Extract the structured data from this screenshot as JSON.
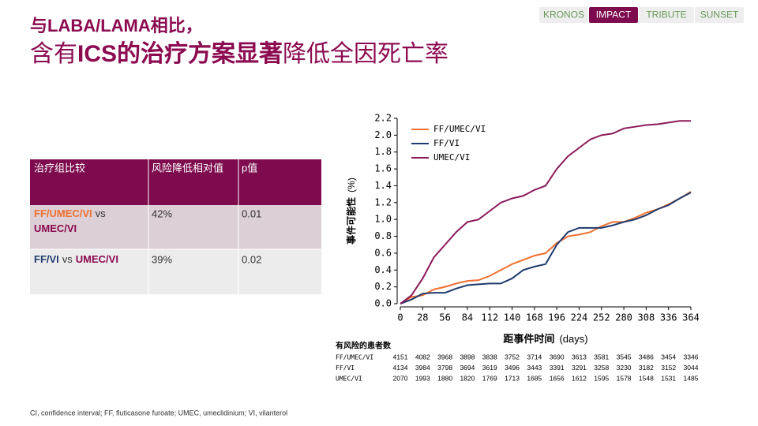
{
  "nav": {
    "tabs": [
      "KRONOS",
      "IMPACT",
      "TRIBUTE",
      "SUNSET"
    ],
    "active": 1
  },
  "header": {
    "line1": "与LABA/LAMA相比，",
    "line2": {
      "pre": "含有",
      "bold": "ICS的治疗方案显著",
      "post": "降低全因死亡率"
    }
  },
  "table": {
    "headers": [
      "治疗组比较",
      "风险降低相对值",
      "p值"
    ],
    "rows": [
      {
        "comparison": {
          "a": "FF/UMEC/VI",
          "vs": "vs",
          "b": "UMEC/VI"
        },
        "reduction": "42%",
        "p": "0.01"
      },
      {
        "comparison": {
          "a": "FF/VI",
          "vs": "vs",
          "b": "UMEC/VI"
        },
        "reduction": "39%",
        "p": "0.02"
      }
    ]
  },
  "chart_data": {
    "type": "line",
    "step_like": true,
    "x_label": "距事件时间",
    "x_unit": "(days)",
    "y_label": "事件可能性",
    "y_unit": "(%)",
    "x": [
      0,
      14,
      28,
      42,
      56,
      70,
      84,
      98,
      112,
      126,
      140,
      154,
      168,
      182,
      196,
      210,
      224,
      238,
      252,
      266,
      280,
      294,
      308,
      322,
      336,
      350,
      364
    ],
    "series": [
      {
        "name": "FF/UMEC/VI",
        "color": "#f07030",
        "values": [
          0,
          0.08,
          0.1,
          0.17,
          0.2,
          0.24,
          0.27,
          0.28,
          0.33,
          0.4,
          0.47,
          0.52,
          0.57,
          0.6,
          0.72,
          0.8,
          0.82,
          0.85,
          0.92,
          0.97,
          0.97,
          1.02,
          1.08,
          1.12,
          1.18,
          1.25,
          1.33
        ]
      },
      {
        "name": "FF/VI",
        "color": "#1f3a6e",
        "values": [
          0,
          0.05,
          0.12,
          0.13,
          0.13,
          0.18,
          0.22,
          0.23,
          0.24,
          0.24,
          0.3,
          0.4,
          0.44,
          0.47,
          0.7,
          0.85,
          0.9,
          0.9,
          0.9,
          0.93,
          0.97,
          1.0,
          1.05,
          1.12,
          1.17,
          1.25,
          1.32
        ]
      },
      {
        "name": "UMEC/VI",
        "color": "#8b1a5a",
        "values": [
          0,
          0.1,
          0.3,
          0.55,
          0.7,
          0.85,
          0.97,
          1.0,
          1.1,
          1.2,
          1.25,
          1.28,
          1.35,
          1.4,
          1.6,
          1.75,
          1.85,
          1.95,
          2.0,
          2.02,
          2.08,
          2.1,
          2.12,
          2.13,
          2.15,
          2.17,
          2.17
        ]
      }
    ],
    "xlim": [
      0,
      364
    ],
    "xticks": [
      0,
      28,
      56,
      84,
      112,
      140,
      168,
      196,
      224,
      252,
      280,
      308,
      336,
      364
    ],
    "ylim": [
      0,
      2.2
    ],
    "yticks": [
      {
        "value": 0,
        "label": "0.0"
      },
      0.2,
      0.4,
      0.6,
      0.8,
      {
        "value": 1,
        "label": "1.0"
      },
      1.2,
      1.4,
      1.6,
      1.8,
      {
        "value": 2,
        "label": "2.0"
      },
      2.2
    ],
    "grid": false,
    "legend": "top-left"
  },
  "risk_table": {
    "title": "有风险的患者数",
    "rows": [
      {
        "name": "FF/UMEC/VI",
        "counts": [
          4151,
          4082,
          3968,
          3898,
          3838,
          3752,
          3714,
          3690,
          3613,
          3581,
          3545,
          3486,
          3454,
          3346
        ]
      },
      {
        "name": "FF/VI",
        "counts": [
          4134,
          3984,
          3798,
          3694,
          3619,
          3496,
          3443,
          3391,
          3291,
          3258,
          3230,
          3182,
          3152,
          3044
        ]
      },
      {
        "name": "UMEC/VI",
        "counts": [
          2070,
          1993,
          1880,
          1820,
          1769,
          1713,
          1685,
          1656,
          1612,
          1595,
          1578,
          1548,
          1531,
          1485
        ]
      }
    ]
  },
  "footnote": "CI, confidence interval;  FF, fluticasone furoate;  UMEC, umeclidinium;  VI, vilanterol"
}
